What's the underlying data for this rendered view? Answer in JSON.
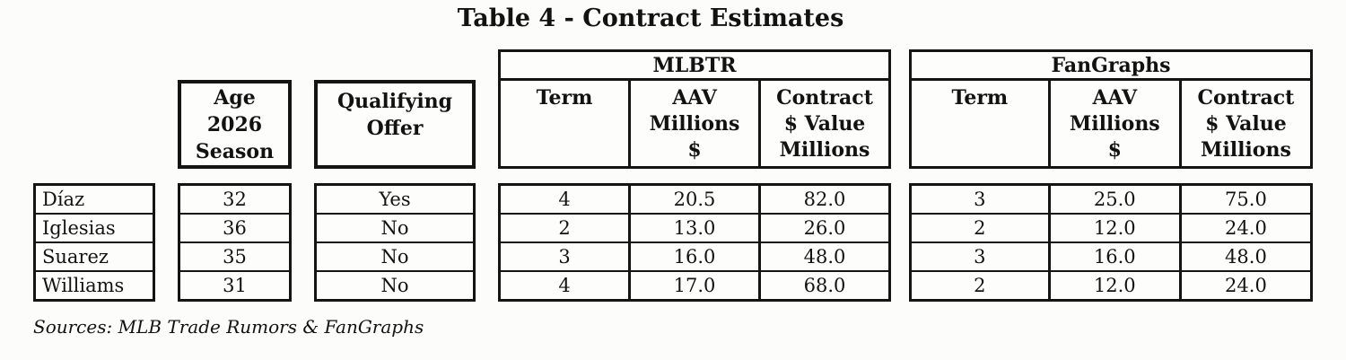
{
  "title": "Table 4 - Contract Estimates",
  "columns": {
    "age_header": {
      "line1": "Age",
      "line2": "2026",
      "line3": "Season"
    },
    "qualifying_header": {
      "line1": "Qualifying",
      "line2": "Offer"
    }
  },
  "groups": [
    {
      "title": "MLBTR",
      "term_label": "Term",
      "aav_lines": [
        "AAV",
        "Millions",
        "$"
      ],
      "contract_lines": [
        "Contract",
        "$ Value",
        "Millions"
      ]
    },
    {
      "title": "FanGraphs",
      "term_label": "Term",
      "aav_lines": [
        "AAV",
        "Millions",
        "$"
      ],
      "contract_lines": [
        "Contract",
        "$ Value",
        "Millions"
      ]
    }
  ],
  "players": [
    {
      "name": "Díaz",
      "age": "32",
      "qualifying_offer": "Yes",
      "mlbtr": {
        "term": "4",
        "aav": "20.5",
        "value": "82.0"
      },
      "fangraphs": {
        "term": "3",
        "aav": "25.0",
        "value": "75.0"
      }
    },
    {
      "name": "Iglesias",
      "age": "36",
      "qualifying_offer": "No",
      "mlbtr": {
        "term": "2",
        "aav": "13.0",
        "value": "26.0"
      },
      "fangraphs": {
        "term": "2",
        "aav": "12.0",
        "value": "24.0"
      }
    },
    {
      "name": "Suarez",
      "age": "35",
      "qualifying_offer": "No",
      "mlbtr": {
        "term": "3",
        "aav": "16.0",
        "value": "48.0"
      },
      "fangraphs": {
        "term": "3",
        "aav": "16.0",
        "value": "48.0"
      }
    },
    {
      "name": "Williams",
      "age": "31",
      "qualifying_offer": "No",
      "mlbtr": {
        "term": "4",
        "aav": "17.0",
        "value": "68.0"
      },
      "fangraphs": {
        "term": "2",
        "aav": "12.0",
        "value": "24.0"
      }
    }
  ],
  "source_note": "Sources: MLB Trade Rumors & FanGraphs",
  "colors": {
    "border": "#141414",
    "text": "#121212",
    "background": "#fcfcfa"
  }
}
